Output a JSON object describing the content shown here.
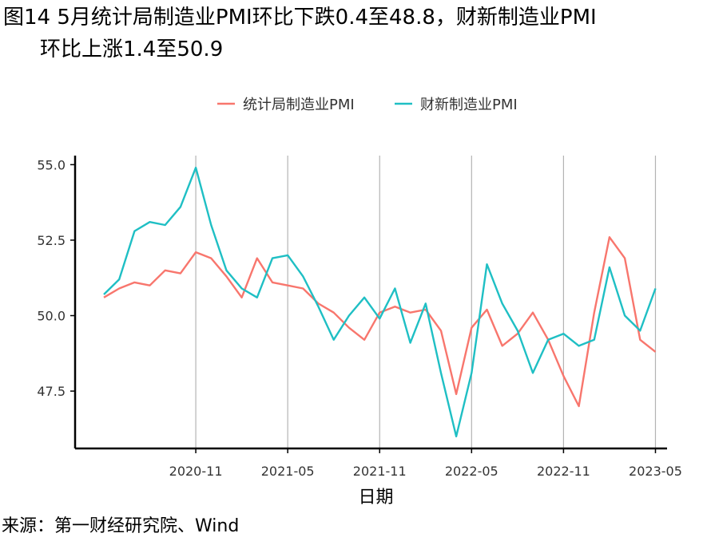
{
  "title": {
    "line1": "图14 5月统计局制造业PMI环比下跌0.4至48.8，财新制造业PMI",
    "line2": "环比上涨1.4至50.9"
  },
  "source": "来源：第一财经研究院、Wind",
  "colors": {
    "nbs": "#f8766d",
    "caixin": "#1fbfc4",
    "grid": "#b3b3b3",
    "axis": "#000000"
  },
  "chart_data": {
    "type": "line",
    "x": [
      "2020-05",
      "2020-06",
      "2020-07",
      "2020-08",
      "2020-09",
      "2020-10",
      "2020-11",
      "2020-12",
      "2021-01",
      "2021-02",
      "2021-03",
      "2021-04",
      "2021-05",
      "2021-06",
      "2021-07",
      "2021-08",
      "2021-09",
      "2021-10",
      "2021-11",
      "2021-12",
      "2022-01",
      "2022-02",
      "2022-03",
      "2022-04",
      "2022-05",
      "2022-06",
      "2022-07",
      "2022-08",
      "2022-09",
      "2022-10",
      "2022-11",
      "2022-12",
      "2023-01",
      "2023-02",
      "2023-03",
      "2023-04",
      "2023-05"
    ],
    "series": [
      {
        "name": "统计局制造业PMI",
        "color": "#f8766d",
        "values": [
          50.6,
          50.9,
          51.1,
          51.0,
          51.5,
          51.4,
          52.1,
          51.9,
          51.3,
          50.6,
          51.9,
          51.1,
          51.0,
          50.9,
          50.4,
          50.1,
          49.6,
          49.2,
          50.1,
          50.3,
          50.1,
          50.2,
          49.5,
          47.4,
          49.6,
          50.2,
          49.0,
          49.4,
          50.1,
          49.2,
          48.0,
          47.0,
          50.1,
          52.6,
          51.9,
          49.2,
          48.8
        ]
      },
      {
        "name": "财新制造业PMI",
        "color": "#1fbfc4",
        "values": [
          50.7,
          51.2,
          52.8,
          53.1,
          53.0,
          53.6,
          54.9,
          53.0,
          51.5,
          50.9,
          50.6,
          51.9,
          52.0,
          51.3,
          50.3,
          49.2,
          50.0,
          50.6,
          49.9,
          50.9,
          49.1,
          50.4,
          48.1,
          46.0,
          48.1,
          51.7,
          50.4,
          49.5,
          48.1,
          49.2,
          49.4,
          49.0,
          49.2,
          51.6,
          50.0,
          49.5,
          50.9
        ]
      }
    ],
    "xlabel": "日期",
    "ylabel": "",
    "x_ticks": [
      "2020-11",
      "2021-05",
      "2021-11",
      "2022-05",
      "2022-11",
      "2023-05"
    ],
    "y_ticks": [
      47.5,
      50.0,
      52.5,
      55.0
    ],
    "y_tick_labels": [
      "47.5",
      "50.0",
      "52.5",
      "55.0"
    ],
    "ylim": [
      45.6,
      55.3
    ],
    "x_start": "2020-05",
    "grid": "vertical-major",
    "legend": "top"
  }
}
